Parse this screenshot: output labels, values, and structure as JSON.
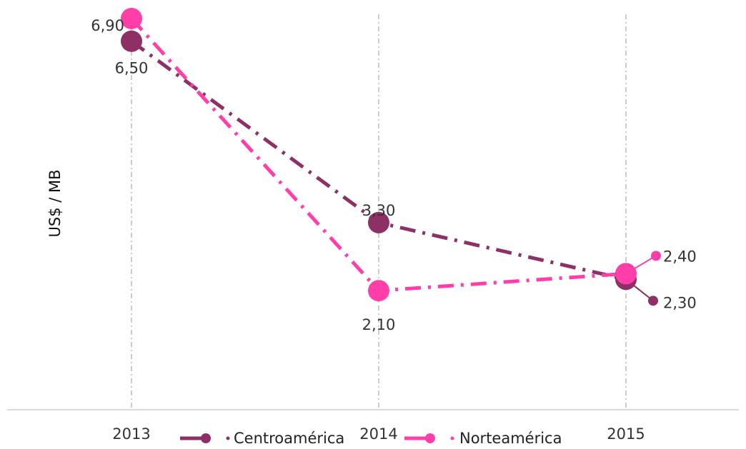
{
  "chart_data": {
    "type": "line",
    "categories": [
      "2013",
      "2014",
      "2015"
    ],
    "ylabel": "US$ / MB",
    "ylim": [
      0,
      7
    ],
    "grid": "vertical dashed guides at each category",
    "legend": "bottom",
    "series": [
      {
        "name": "Centroamérica",
        "values": [
          6.5,
          3.3,
          2.3
        ],
        "labels": [
          "6,50",
          "3,30",
          "2,30"
        ],
        "color": "#8e2f66",
        "style": "dash-dot"
      },
      {
        "name": "Norteamérica",
        "values": [
          6.9,
          2.1,
          2.4
        ],
        "labels": [
          "6,90",
          "2,10",
          "2,40"
        ],
        "color": "#ff3eaa",
        "style": "dash-dot"
      }
    ]
  }
}
